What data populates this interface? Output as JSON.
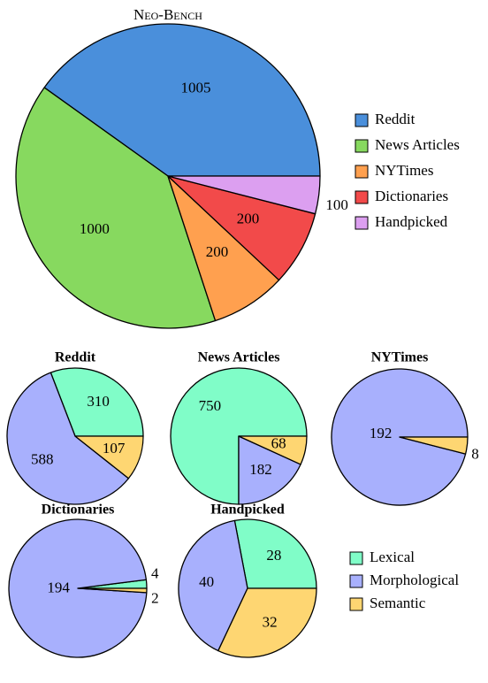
{
  "chart_data": [
    {
      "type": "pie",
      "title": "Neo-Bench",
      "legend": "right",
      "labels": [
        "Reddit",
        "News Articles",
        "NYTimes",
        "Dictionaries",
        "Handpicked"
      ],
      "values": [
        1005,
        1000,
        200,
        200,
        100
      ],
      "colors": [
        "#4a8fdb",
        "#87d95f",
        "#ffa04f",
        "#f24a4a",
        "#dc9ff0"
      ]
    },
    {
      "type": "pie",
      "title": "Reddit",
      "labels": [
        "Lexical",
        "Morphological",
        "Semantic"
      ],
      "values": [
        310,
        588,
        107
      ],
      "colors": [
        "#80fdc8",
        "#a8b0fd",
        "#fed672"
      ]
    },
    {
      "type": "pie",
      "title": "News Articles",
      "labels": [
        "Lexical",
        "Morphological",
        "Semantic"
      ],
      "values": [
        750,
        182,
        68
      ],
      "colors": [
        "#80fdc8",
        "#a8b0fd",
        "#fed672"
      ]
    },
    {
      "type": "pie",
      "title": "NYTimes",
      "labels": [
        "Morphological",
        "Semantic"
      ],
      "values": [
        192,
        8
      ],
      "colors": [
        "#a8b0fd",
        "#fed672"
      ]
    },
    {
      "type": "pie",
      "title": "Dictionaries",
      "labels": [
        "Lexical",
        "Morphological",
        "Semantic"
      ],
      "values": [
        4,
        194,
        2
      ],
      "colors": [
        "#80fdc8",
        "#a8b0fd",
        "#fed672"
      ]
    },
    {
      "type": "pie",
      "title": "Handpicked",
      "legend": "right",
      "labels": [
        "Lexical",
        "Morphological",
        "Semantic"
      ],
      "values": [
        28,
        40,
        32
      ],
      "colors": [
        "#80fdc8",
        "#a8b0fd",
        "#fed672"
      ]
    }
  ]
}
